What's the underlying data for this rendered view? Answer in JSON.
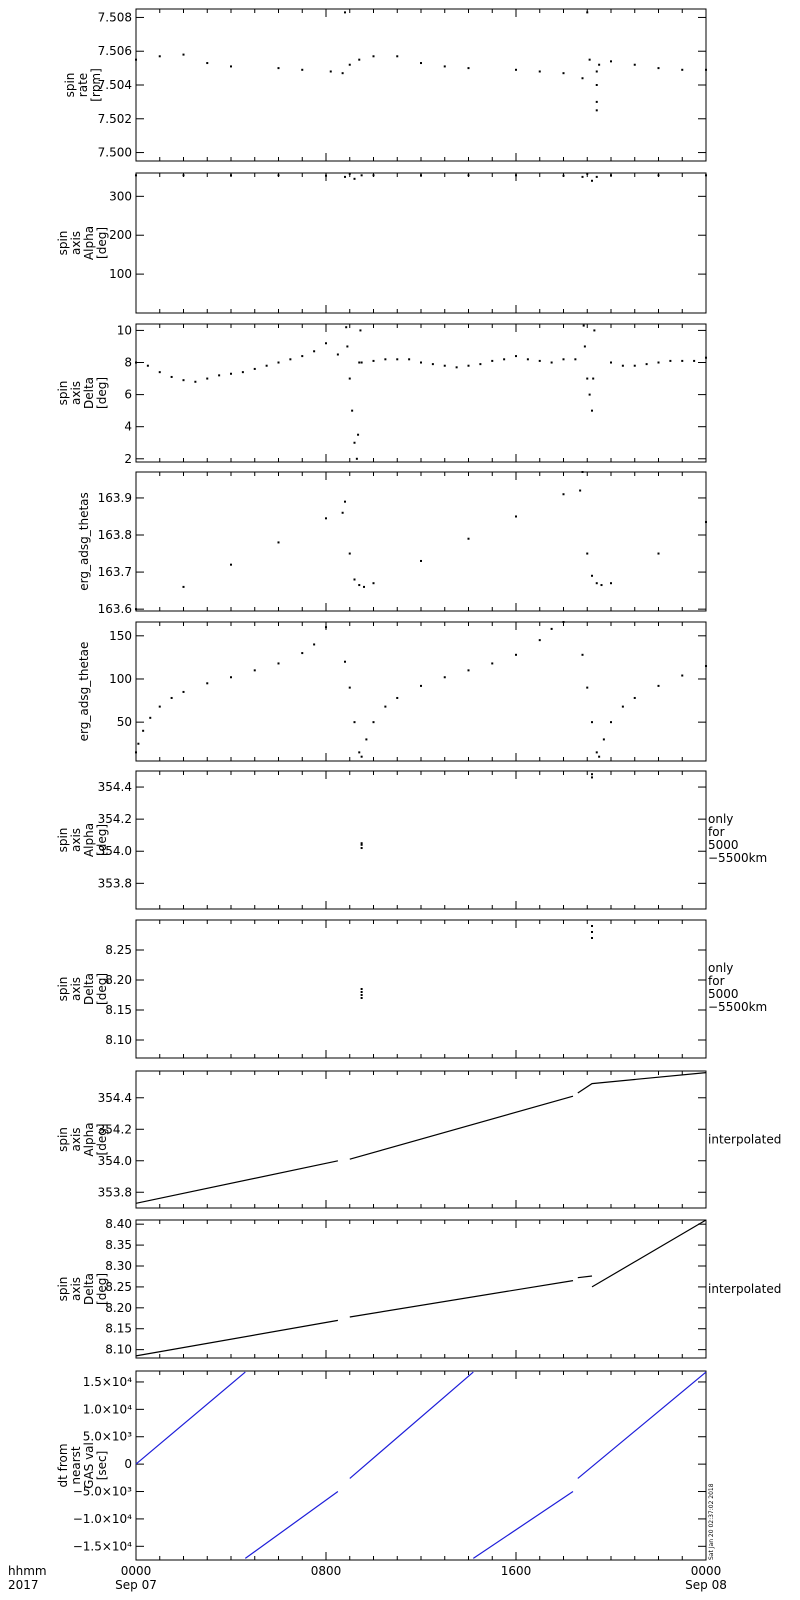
{
  "chart_data": [
    {
      "type": "scatter",
      "ylabel": [
        "spin",
        "rate",
        "[rpm]"
      ],
      "ylim": [
        7.4995,
        7.5085
      ],
      "yticks": [
        7.5,
        7.502,
        7.504,
        7.506,
        7.508
      ],
      "ytick_decimals": 3,
      "side_label": [],
      "series": [
        {
          "name": "",
          "color": "#000000",
          "style": "dots",
          "x": [
            0,
            1,
            2,
            3,
            4,
            6,
            7,
            8.2,
            8.7,
            8.8,
            9.0,
            9.4,
            10.0,
            11.0,
            12.0,
            13.0,
            14.0,
            16.0,
            17.0,
            18.0,
            18.8,
            19.0,
            19.1,
            19.5,
            20.0,
            21.0,
            22.0,
            23.0,
            24.0
          ],
          "y": [
            7.5055,
            7.5057,
            7.5058,
            7.5053,
            7.5051,
            7.505,
            7.5049,
            7.5048,
            7.5047,
            7.5083,
            7.5052,
            7.5055,
            7.5057,
            7.5057,
            7.5053,
            7.5051,
            7.505,
            7.5049,
            7.5048,
            7.5047,
            7.5044,
            7.5083,
            7.5055,
            7.5052,
            7.5054,
            7.5052,
            7.505,
            7.5049,
            7.5049
          ]
        },
        {
          "name": "",
          "color": "#000000",
          "style": "dots",
          "x": [
            19.4,
            19.4,
            19.4,
            19.4
          ],
          "y": [
            7.5048,
            7.504,
            7.503,
            7.5025
          ]
        }
      ]
    },
    {
      "type": "scatter",
      "ylabel": [
        "spin",
        "axis",
        "Alpha",
        "[deg]"
      ],
      "ylim": [
        0,
        360
      ],
      "yticks": [
        100,
        200,
        300
      ],
      "ytick_decimals": 0,
      "side_label": [],
      "series": [
        {
          "name": "",
          "color": "#000000",
          "style": "dots",
          "x": [
            0,
            2,
            4,
            6,
            8,
            8.8,
            9.0,
            9.2,
            9.5,
            10,
            12,
            14,
            16,
            18,
            18.8,
            19.0,
            19.2,
            19.4,
            20,
            22,
            24
          ],
          "y": [
            354,
            354,
            354,
            354,
            353,
            350,
            358,
            345,
            354,
            354,
            354,
            354,
            354,
            353,
            350,
            358,
            340,
            350,
            354,
            354,
            354
          ]
        }
      ]
    },
    {
      "type": "scatter",
      "ylabel": [
        "spin",
        "axis",
        "Delta",
        "[deg]"
      ],
      "ylim": [
        1.8,
        10.4
      ],
      "yticks": [
        2,
        4,
        6,
        8,
        10
      ],
      "ytick_decimals": 0,
      "side_label": [],
      "series": [
        {
          "name": "",
          "color": "#000000",
          "style": "dots",
          "x": [
            0,
            0.5,
            1,
            1.5,
            2,
            2.5,
            3,
            3.5,
            4,
            4.5,
            5,
            5.5,
            6,
            6.5,
            7,
            7.5,
            8,
            8.5,
            9.5,
            10,
            10.5,
            11,
            11.5,
            12,
            12.5,
            13,
            13.5,
            14,
            14.5,
            15,
            15.5,
            16,
            16.5,
            17,
            17.5,
            18,
            18.5,
            20,
            20.5,
            21,
            21.5,
            22,
            22.5,
            23,
            23.5,
            24
          ],
          "y": [
            8.0,
            7.8,
            7.4,
            7.1,
            6.9,
            6.8,
            7.0,
            7.2,
            7.3,
            7.4,
            7.6,
            7.8,
            8.0,
            8.2,
            8.4,
            8.7,
            9.2,
            8.5,
            8.0,
            8.1,
            8.2,
            8.2,
            8.2,
            8.0,
            7.9,
            7.8,
            7.7,
            7.8,
            7.9,
            8.1,
            8.2,
            8.4,
            8.2,
            8.1,
            8.0,
            8.2,
            8.2,
            8.0,
            7.8,
            7.8,
            7.9,
            8.0,
            8.1,
            8.1,
            8.1,
            8.3
          ]
        },
        {
          "name": "",
          "color": "#000000",
          "style": "dots",
          "x": [
            8.85,
            8.9,
            9.0,
            9.1,
            9.2,
            9.3,
            9.35,
            9.4,
            9.45,
            18.85,
            18.9,
            19.0,
            19.1,
            19.2,
            19.25,
            19.3
          ],
          "y": [
            10.2,
            9.0,
            7.0,
            5.0,
            3.0,
            2.0,
            3.5,
            8.0,
            10.0,
            10.3,
            9.0,
            7.0,
            6.0,
            5.0,
            7.0,
            10.0
          ]
        }
      ]
    },
    {
      "type": "scatter",
      "ylabel": [
        "erg_adsg_thetas"
      ],
      "ylim": [
        163.595,
        163.97
      ],
      "yticks": [
        163.6,
        163.7,
        163.8,
        163.9
      ],
      "ytick_decimals": 1,
      "side_label": [],
      "series": [
        {
          "name": "",
          "color": "#000000",
          "style": "dots",
          "x": [
            0,
            2,
            4,
            6,
            8,
            8.7,
            8.8,
            9.0,
            9.2,
            9.4,
            9.6,
            10,
            12,
            14,
            16,
            18,
            18.7,
            18.8,
            19.0,
            19.2,
            19.4,
            19.6,
            20,
            22,
            24
          ],
          "y": [
            163.6,
            163.66,
            163.72,
            163.78,
            163.845,
            163.86,
            163.89,
            163.75,
            163.68,
            163.665,
            163.66,
            163.67,
            163.73,
            163.79,
            163.85,
            163.91,
            163.92,
            163.97,
            163.75,
            163.69,
            163.67,
            163.665,
            163.67,
            163.75,
            163.835
          ]
        }
      ]
    },
    {
      "type": "scatter",
      "ylabel": [
        "erg_adsg_thetae"
      ],
      "ylim": [
        5,
        166
      ],
      "yticks": [
        50,
        100,
        150
      ],
      "ytick_decimals": 0,
      "side_label": [],
      "series": [
        {
          "name": "",
          "color": "#000000",
          "style": "dots",
          "x": [
            0,
            0.1,
            0.3,
            0.6,
            1,
            1.5,
            2,
            3,
            4,
            5,
            6,
            7,
            7.5,
            8,
            8.8,
            9.0,
            9.2,
            9.4,
            9.5,
            9.7,
            10,
            10.5,
            11,
            12,
            13,
            14,
            15,
            16,
            17,
            17.5,
            18,
            18.8,
            19.0,
            19.2,
            19.4,
            19.5,
            19.7,
            20,
            20.5,
            21,
            22,
            23,
            24
          ],
          "y": [
            15,
            25,
            40,
            55,
            68,
            78,
            85,
            95,
            102,
            110,
            118,
            130,
            140,
            160,
            120,
            90,
            50,
            15,
            10,
            30,
            50,
            68,
            78,
            92,
            102,
            110,
            118,
            128,
            145,
            158,
            166,
            128,
            90,
            50,
            15,
            10,
            30,
            50,
            68,
            78,
            92,
            104,
            115
          ]
        }
      ]
    },
    {
      "type": "scatter",
      "ylabel": [
        "spin",
        "axis",
        "Alpha",
        "[deg]"
      ],
      "ylim": [
        353.64,
        354.5
      ],
      "yticks": [
        353.8,
        354.0,
        354.2,
        354.4
      ],
      "ytick_decimals": 1,
      "side_label": [
        "only",
        "for",
        "5000",
        "−5500km"
      ],
      "series": [
        {
          "name": "",
          "color": "#000000",
          "style": "dots",
          "x": [
            9.5,
            9.5,
            9.5,
            19.2,
            19.2
          ],
          "y": [
            354.02,
            354.04,
            354.05,
            354.46,
            354.48
          ]
        }
      ]
    },
    {
      "type": "scatter",
      "ylabel": [
        "spin",
        "axis",
        "Delta",
        "[deg]"
      ],
      "ylim": [
        8.07,
        8.3
      ],
      "yticks": [
        8.1,
        8.15,
        8.2,
        8.25
      ],
      "ytick_decimals": 2,
      "side_label": [
        "only",
        "for",
        "5000",
        "−5500km"
      ],
      "series": [
        {
          "name": "",
          "color": "#000000",
          "style": "dots",
          "x": [
            9.5,
            9.5,
            9.5,
            9.5,
            19.2,
            19.2,
            19.2
          ],
          "y": [
            8.17,
            8.175,
            8.18,
            8.185,
            8.27,
            8.28,
            8.29
          ]
        }
      ]
    },
    {
      "type": "line",
      "ylabel": [
        "spin",
        "axis",
        "Alpha",
        "[deg]"
      ],
      "ylim": [
        353.7,
        354.57
      ],
      "yticks": [
        353.8,
        354.0,
        354.2,
        354.4
      ],
      "ytick_decimals": 1,
      "side_label": [
        "interpolated"
      ],
      "series": [
        {
          "name": "",
          "color": "#000000",
          "style": "line",
          "x": [
            0,
            8.5
          ],
          "y": [
            353.73,
            354.0
          ]
        },
        {
          "name": "",
          "color": "#000000",
          "style": "line",
          "x": [
            9.0,
            18.4
          ],
          "y": [
            354.01,
            354.41
          ]
        },
        {
          "name": "",
          "color": "#000000",
          "style": "line",
          "x": [
            18.6,
            19.2,
            24
          ],
          "y": [
            354.43,
            354.49,
            354.56
          ]
        }
      ]
    },
    {
      "type": "line",
      "ylabel": [
        "spin",
        "axis",
        "Delta",
        "[deg]"
      ],
      "ylim": [
        8.08,
        8.41
      ],
      "yticks": [
        8.1,
        8.15,
        8.2,
        8.25,
        8.3,
        8.35,
        8.4
      ],
      "ytick_decimals": 2,
      "side_label": [
        "interpolated"
      ],
      "series": [
        {
          "name": "",
          "color": "#000000",
          "style": "line",
          "x": [
            0,
            8.5
          ],
          "y": [
            8.085,
            8.17
          ]
        },
        {
          "name": "",
          "color": "#000000",
          "style": "line",
          "x": [
            9.0,
            18.4
          ],
          "y": [
            8.178,
            8.265
          ]
        },
        {
          "name": "",
          "color": "#000000",
          "style": "line",
          "x": [
            18.6,
            19.2
          ],
          "y": [
            8.272,
            8.276
          ]
        },
        {
          "name": "",
          "color": "#000000",
          "style": "line",
          "x": [
            19.2,
            24
          ],
          "y": [
            8.25,
            8.41
          ]
        }
      ]
    },
    {
      "type": "line",
      "ylabel": [
        "dt from",
        "nearst",
        "GAS val",
        "[sec]"
      ],
      "ylim": [
        -17500,
        17000
      ],
      "yticks": [
        -15000,
        -10000,
        -5000,
        0,
        5000,
        10000,
        15000
      ],
      "ytick_labels": [
        "−1.5×10⁴",
        "−1.0×10⁴",
        "−5.0×10³",
        "0",
        "5.0×10³",
        "1.0×10⁴",
        "1.5×10⁴"
      ],
      "ytick_decimals": 0,
      "side_label": [],
      "series": [
        {
          "name": "",
          "color": "#1d1dd9",
          "style": "line",
          "x": [
            0,
            4.6
          ],
          "y": [
            0,
            16800
          ]
        },
        {
          "name": "",
          "color": "#1d1dd9",
          "style": "line",
          "x": [
            4.6,
            8.5
          ],
          "y": [
            -17200,
            -5000
          ]
        },
        {
          "name": "",
          "color": "#1d1dd9",
          "style": "line",
          "x": [
            9.0,
            14.2
          ],
          "y": [
            -2600,
            16800
          ]
        },
        {
          "name": "",
          "color": "#1d1dd9",
          "style": "line",
          "x": [
            14.2,
            18.4
          ],
          "y": [
            -17200,
            -5000
          ]
        },
        {
          "name": "",
          "color": "#1d1dd9",
          "style": "line",
          "x": [
            18.6,
            24
          ],
          "y": [
            -2600,
            16800
          ]
        }
      ]
    }
  ],
  "xaxis": {
    "range_hours": [
      0,
      24
    ],
    "ticks": [
      {
        "hour": 0,
        "label": "0000",
        "sublabel": "Sep 07"
      },
      {
        "hour": 8,
        "label": "0800",
        "sublabel": ""
      },
      {
        "hour": 16,
        "label": "1600",
        "sublabel": ""
      },
      {
        "hour": 24,
        "label": "0000",
        "sublabel": "Sep 08"
      }
    ],
    "corner_label_1": "hhmm",
    "corner_label_2": "2017"
  },
  "stamp": "Sat Jan 20 02:37:02 2018"
}
